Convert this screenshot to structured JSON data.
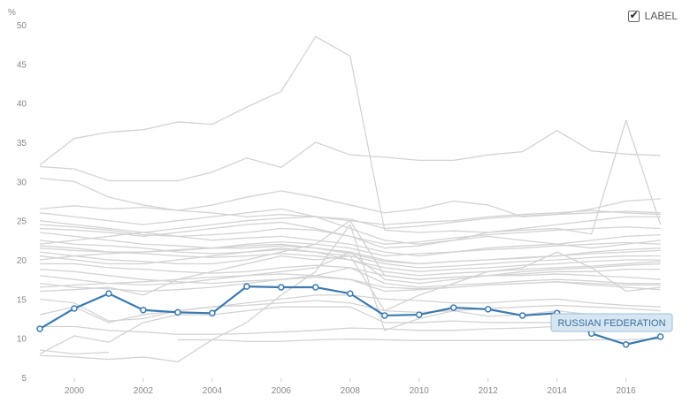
{
  "label_toggle": {
    "label": "LABEL",
    "checked": true,
    "checkmark_icon": "check-icon"
  },
  "chart_data": {
    "type": "line",
    "title": "",
    "xlabel": "",
    "ylabel": "%",
    "ylim": [
      5,
      50
    ],
    "xlim": [
      1999,
      2017.6
    ],
    "x_ticks": [
      2000,
      2002,
      2004,
      2006,
      2008,
      2010,
      2012,
      2014,
      2016
    ],
    "y_ticks": [
      5,
      10,
      15,
      20,
      25,
      30,
      35,
      40,
      45,
      50
    ],
    "grid": false,
    "highlight_color": "#3a7ab0",
    "background_color": "#d3d3d3",
    "highlight": {
      "name": "RUSSIAN FEDERATION",
      "x": [
        1999,
        2000,
        2001,
        2002,
        2003,
        2004,
        2005,
        2006,
        2007,
        2008,
        2009,
        2010,
        2011,
        2012,
        2013,
        2014,
        2015,
        2016,
        2017
      ],
      "values": [
        11.2,
        13.8,
        15.7,
        13.6,
        13.3,
        13.2,
        16.6,
        16.5,
        16.5,
        15.7,
        12.9,
        13.0,
        13.9,
        13.7,
        12.9,
        13.2,
        10.6,
        9.2,
        10.2
      ]
    },
    "background_series": [
      {
        "x_start": 1999,
        "values": [
          32.1,
          35.5,
          36.3,
          36.6,
          37.6,
          37.3,
          39.5,
          41.5,
          48.5,
          46.0,
          23.8,
          23.5,
          23.7,
          23.5,
          23.8,
          24.0,
          23.3,
          37.8,
          24.5
        ]
      },
      {
        "x_start": 1999,
        "values": [
          31.9,
          31.6,
          30.1,
          30.1,
          30.1,
          31.2,
          33.0,
          31.8,
          35.0,
          33.4,
          33.1,
          32.7,
          32.7,
          33.4,
          33.8,
          36.5,
          33.9,
          33.5,
          33.3
        ]
      },
      {
        "x_start": 1999,
        "values": [
          30.4,
          30.0,
          28.0,
          27.0,
          26.3,
          27.0,
          28.0,
          28.8,
          28.0,
          27.0,
          26.0,
          26.5,
          27.5,
          27.0,
          25.5,
          25.8,
          26.5,
          27.5,
          27.8
        ]
      },
      {
        "x_start": 1999,
        "values": [
          26.5,
          26.9,
          26.5,
          26.7,
          26.3,
          26.0,
          25.5,
          25.8,
          25.5,
          25.0,
          24.5,
          24.8,
          25.0,
          25.5,
          25.8,
          26.0,
          26.3,
          26.0,
          25.8
        ]
      },
      {
        "x_start": 1999,
        "values": [
          26.0,
          25.5,
          25.0,
          24.5,
          25.0,
          25.5,
          26.0,
          26.5,
          25.5,
          24.0,
          22.5,
          22.0,
          22.5,
          23.0,
          22.5,
          22.0,
          21.5,
          22.0,
          22.5
        ]
      },
      {
        "x_start": 1999,
        "values": [
          25.0,
          24.5,
          24.0,
          23.5,
          23.0,
          22.5,
          22.8,
          23.0,
          22.5,
          22.0,
          21.0,
          20.5,
          21.0,
          21.5,
          21.8,
          22.0,
          22.5,
          23.0,
          23.2
        ]
      },
      {
        "x_start": 1999,
        "values": [
          24.0,
          23.8,
          23.5,
          23.0,
          23.5,
          24.0,
          24.5,
          24.8,
          24.0,
          23.0,
          21.5,
          21.8,
          22.5,
          23.5,
          24.0,
          24.5,
          25.0,
          25.5,
          25.5
        ]
      },
      {
        "x_start": 1999,
        "values": [
          23.5,
          23.0,
          22.5,
          22.0,
          21.8,
          21.5,
          21.5,
          21.8,
          21.5,
          21.0,
          20.0,
          19.5,
          19.8,
          20.0,
          20.3,
          20.5,
          21.0,
          21.3,
          21.5
        ]
      },
      {
        "x_start": 1999,
        "values": [
          22.5,
          22.0,
          21.8,
          21.5,
          21.0,
          20.8,
          21.0,
          21.3,
          21.0,
          20.5,
          19.5,
          19.0,
          19.2,
          19.5,
          19.8,
          20.0,
          20.3,
          20.5,
          20.5
        ]
      },
      {
        "x_start": 1999,
        "values": [
          21.5,
          21.2,
          21.0,
          20.8,
          20.5,
          20.3,
          20.5,
          20.8,
          20.5,
          20.0,
          19.0,
          18.5,
          18.8,
          19.0,
          19.3,
          19.5,
          19.8,
          20.0,
          20.0
        ]
      },
      {
        "x_start": 1999,
        "values": [
          21.0,
          20.5,
          20.0,
          19.8,
          19.5,
          19.5,
          20.0,
          21.0,
          22.0,
          25.0,
          18.0,
          17.5,
          17.8,
          18.0,
          18.5,
          18.8,
          19.0,
          19.3,
          19.5
        ]
      },
      {
        "x_start": 1999,
        "values": [
          20.5,
          20.0,
          19.5,
          19.5,
          20.0,
          20.5,
          21.0,
          21.5,
          21.0,
          20.0,
          18.5,
          18.0,
          18.3,
          18.5,
          18.8,
          19.0,
          19.2,
          19.5,
          19.8
        ]
      },
      {
        "x_start": 1999,
        "values": [
          19.5,
          19.5,
          19.0,
          18.8,
          18.5,
          18.3,
          18.5,
          19.0,
          19.3,
          19.0,
          18.0,
          17.5,
          17.8,
          18.0,
          18.2,
          18.5,
          18.5,
          18.8,
          18.8
        ]
      },
      {
        "x_start": 1999,
        "values": [
          18.0,
          17.5,
          17.0,
          16.8,
          17.0,
          17.5,
          18.0,
          18.5,
          19.0,
          21.0,
          17.5,
          17.0,
          17.5,
          18.0,
          18.0,
          18.2,
          18.0,
          17.8,
          17.5
        ]
      },
      {
        "x_start": 1999,
        "values": [
          17.0,
          16.5,
          16.3,
          16.0,
          16.2,
          16.5,
          17.0,
          17.5,
          18.0,
          19.0,
          17.0,
          16.5,
          16.8,
          17.0,
          17.3,
          17.5,
          17.3,
          17.0,
          17.0
        ]
      },
      {
        "x_start": 1999,
        "values": [
          16.0,
          16.2,
          16.5,
          15.5,
          17.5,
          18.5,
          19.5,
          20.5,
          20.0,
          20.5,
          13.5,
          15.5,
          17.0,
          18.5,
          19.0,
          21.0,
          19.0,
          16.0,
          16.5
        ]
      },
      {
        "x_start": 1999,
        "values": [
          15.0,
          14.5,
          12.2,
          12.5,
          13.5,
          14.0,
          14.5,
          15.0,
          15.5,
          15.5,
          15.0,
          14.8,
          14.5,
          14.5,
          14.8,
          15.0,
          14.5,
          14.2,
          14.0
        ]
      },
      {
        "x_start": 1999,
        "values": [
          13.0,
          14.0,
          12.0,
          13.0,
          13.5,
          14.0,
          14.2,
          14.5,
          14.8,
          14.5,
          13.5,
          13.3,
          13.5,
          13.8,
          14.0,
          14.2,
          14.0,
          13.8,
          13.5
        ]
      },
      {
        "x_start": 1999,
        "values": [
          8.0,
          10.3,
          9.5,
          12.0,
          13.0,
          13.0,
          13.5,
          14.0,
          14.0,
          14.0,
          12.0,
          12.0,
          12.2,
          12.0,
          12.0,
          12.0,
          12.0,
          12.0,
          12.0
        ]
      },
      {
        "x_start": 1999,
        "values": [
          11.5,
          11.5,
          11.0,
          10.8,
          10.5,
          10.5,
          10.6,
          10.8,
          11.0,
          11.3,
          11.2,
          11.0,
          11.0,
          11.2,
          11.3,
          11.5,
          11.5,
          11.3,
          11.0
        ]
      },
      {
        "x_start": 1999,
        "values": [
          7.8,
          7.6,
          7.3,
          7.6,
          7.0,
          9.8,
          12.0,
          15.5,
          18.5,
          24.5,
          11.0,
          12.5,
          13.5,
          12.8,
          13.0,
          13.5,
          13.0,
          12.5,
          12.5
        ]
      },
      {
        "x_start": 2003,
        "values": [
          9.8,
          9.8,
          9.6,
          9.6,
          9.8,
          9.9,
          9.8,
          9.7,
          9.7,
          9.7,
          9.7,
          9.7,
          9.8,
          9.8,
          9.9
        ]
      },
      {
        "x_start": 1999,
        "values": [
          8.5,
          8.0,
          8.2
        ]
      },
      {
        "x_start": 1999,
        "values": [
          22.0,
          22.5,
          23.0,
          23.5,
          24.0,
          24.5,
          25.0,
          25.3,
          25.5,
          25.2,
          24.0,
          24.3,
          24.8,
          25.3,
          25.6,
          25.8,
          26.0,
          26.2,
          26.0
        ]
      },
      {
        "x_start": 1999,
        "values": [
          21.8,
          21.5,
          21.0,
          21.0,
          21.3,
          21.5,
          22.0,
          22.3,
          22.0,
          21.5,
          20.5,
          20.8,
          21.0,
          21.3,
          21.5,
          21.8,
          22.0,
          22.2,
          22.0
        ]
      },
      {
        "x_start": 1999,
        "values": [
          20.0,
          20.5,
          20.8,
          21.0,
          21.2,
          21.5,
          21.8,
          22.0,
          21.5,
          20.8,
          19.8,
          19.5,
          19.8,
          20.0,
          20.2,
          20.5,
          20.8,
          21.0,
          21.2
        ]
      },
      {
        "x_start": 1999,
        "values": [
          18.8,
          18.5,
          18.0,
          17.5,
          17.2,
          17.0,
          17.3,
          17.5,
          17.8,
          17.5,
          16.5,
          16.3,
          16.5,
          16.8,
          17.0,
          17.2,
          17.0,
          16.8,
          16.8
        ]
      },
      {
        "x_start": 1999,
        "values": [
          16.5,
          16.8,
          17.0,
          17.2,
          17.5,
          17.8,
          18.0,
          18.2,
          18.0,
          17.5,
          16.0,
          16.2,
          16.5,
          16.8,
          17.0,
          17.2,
          16.8,
          16.5,
          16.2
        ]
      },
      {
        "x_start": 1999,
        "values": [
          24.5,
          24.2,
          23.8,
          23.2,
          23.0,
          23.2,
          23.5,
          24.0,
          23.8,
          23.0,
          22.0,
          22.3,
          22.8,
          23.2,
          23.5,
          23.8,
          24.0,
          24.2,
          24.0
        ]
      }
    ]
  }
}
